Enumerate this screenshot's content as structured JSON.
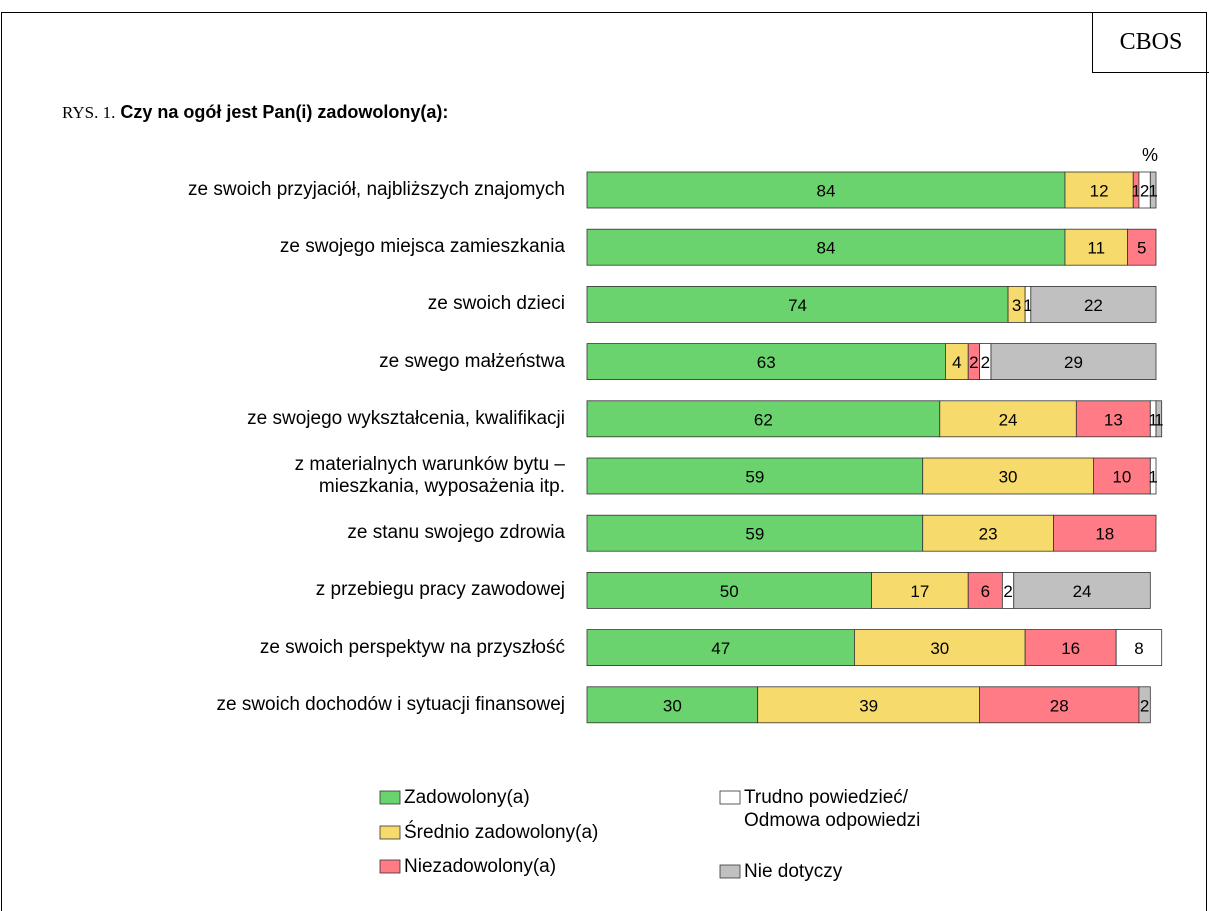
{
  "source": "CBOS",
  "chart_data": {
    "type": "stacked_bar_horizontal",
    "title_prefix": "RYS. 1.",
    "title": "Czy na ogół jest Pan(i) zadowolony(a):",
    "unit_label": "%",
    "categories": [
      "ze swoich przyjaciół, najbliższych znajomych",
      "ze swojego miejsca zamieszkania",
      "ze swoich dzieci",
      "ze swego małżeństwa",
      "ze swojego wykształcenia, kwalifikacji",
      "z materialnych warunków bytu –\nmieszkania, wyposażenia itp.",
      "ze stanu swojego zdrowia",
      "z przebiegu pracy zawodowej",
      "ze swoich perspektyw na przyszłość",
      "ze swoich dochodów i sytuacji finansowej"
    ],
    "series": [
      {
        "name": "Zadowolony(a)",
        "color": "#6bd36e",
        "values": [
          84,
          84,
          74,
          63,
          62,
          59,
          59,
          50,
          47,
          30
        ]
      },
      {
        "name": "Średnio zadowolony(a)",
        "color": "#f7da6c",
        "values": [
          12,
          11,
          3,
          4,
          24,
          30,
          23,
          17,
          30,
          39
        ]
      },
      {
        "name": "Niezadowolony(a)",
        "color": "#ff7b86",
        "values": [
          1,
          5,
          null,
          2,
          13,
          10,
          18,
          6,
          16,
          28
        ]
      },
      {
        "name": "Trudno powiedzieć/\nOdmowa odpowiedzi",
        "color": "#ffffff",
        "values": [
          2,
          null,
          1,
          2,
          1,
          1,
          null,
          2,
          8,
          null
        ]
      },
      {
        "name": "Nie dotyczy",
        "color": "#c0c0c0",
        "values": [
          1,
          null,
          22,
          29,
          1,
          null,
          null,
          24,
          null,
          2
        ]
      }
    ]
  }
}
